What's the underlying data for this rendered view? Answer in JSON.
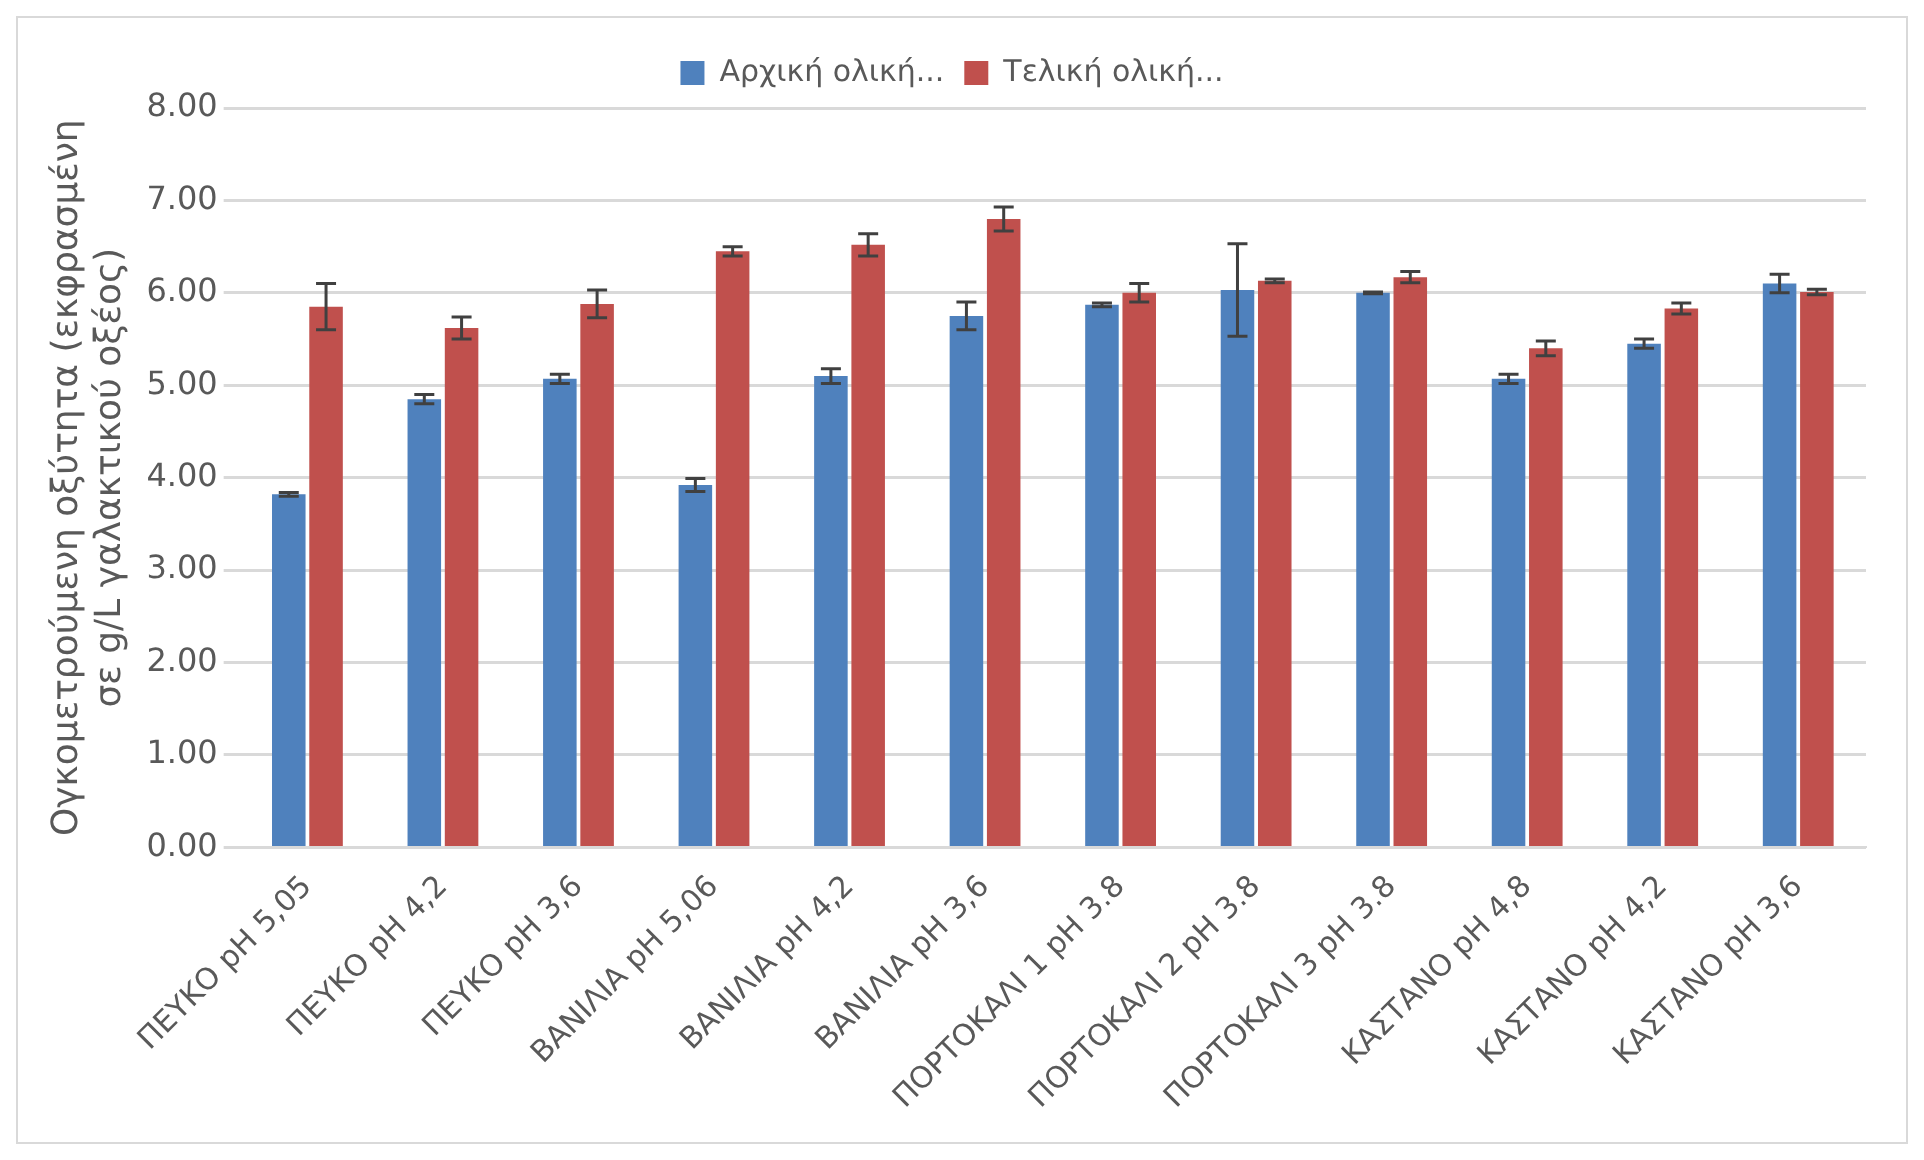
{
  "chart_data": {
    "type": "bar",
    "ylabel": "Ογκομετρούμενη οξύτητα (εκφρασμένη σε g/L γαλακτικού οξέος)",
    "categories": [
      "ΠΕΥΚΟ pH 5,05",
      "ΠΕΥΚΟ pH 4,2",
      "ΠΕΥΚΟ pH 3,6",
      "ΒΑΝΙΛΙΑ pH 5,06",
      "ΒΑΝΙΛΙΑ pH 4,2",
      "ΒΑΝΙΛΙΑ pH 3,6",
      "ΠΟΡΤΟΚΑΛΙ 1 pH 3.8",
      "ΠΟΡΤΟΚΑΛΙ 2 pH 3.8",
      "ΠΟΡΤΟΚΑΛΙ 3 pH 3.8",
      "ΚΑΣΤΑΝΟ pH 4,8",
      "ΚΑΣΤΑΝΟ pH 4,2",
      "ΚΑΣΤΑΝΟ pH 3,6"
    ],
    "series": [
      {
        "name": "Αρχική ολική...",
        "color": "#4f81bd",
        "values": [
          3.82,
          4.85,
          5.07,
          3.92,
          5.1,
          5.75,
          5.87,
          6.03,
          6.0,
          5.07,
          5.45,
          6.1
        ],
        "errors": [
          0.02,
          0.05,
          0.05,
          0.07,
          0.08,
          0.15,
          0.02,
          0.5,
          0.01,
          0.05,
          0.05,
          0.1
        ]
      },
      {
        "name": "Τελική ολική...",
        "color": "#c0504d",
        "values": [
          5.85,
          5.62,
          5.88,
          6.45,
          6.52,
          6.8,
          6.0,
          6.13,
          6.17,
          5.4,
          5.83,
          6.01
        ],
        "errors": [
          0.25,
          0.12,
          0.15,
          0.05,
          0.12,
          0.13,
          0.1,
          0.02,
          0.06,
          0.08,
          0.06,
          0.03
        ]
      }
    ],
    "ylim": [
      0,
      8
    ],
    "yticks": [
      {
        "value": 0,
        "label": "0.00"
      },
      {
        "value": 1,
        "label": "1.00"
      },
      {
        "value": 2,
        "label": "2.00"
      },
      {
        "value": 3,
        "label": "3.00"
      },
      {
        "value": 4,
        "label": "4.00"
      },
      {
        "value": 5,
        "label": "5.00"
      },
      {
        "value": 6,
        "label": "6.00"
      },
      {
        "value": 7,
        "label": "7.00"
      },
      {
        "value": 8,
        "label": "8.00"
      }
    ],
    "grid": "y",
    "legend": "top"
  }
}
